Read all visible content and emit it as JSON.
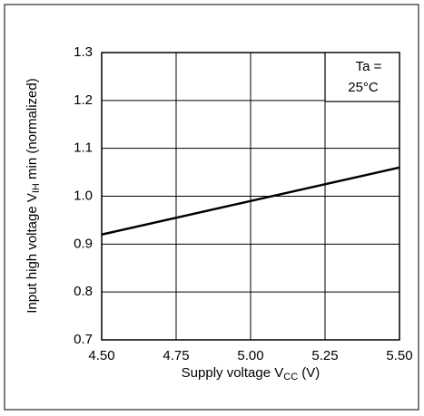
{
  "chart_data": {
    "type": "line",
    "xlabel": [
      "Supply voltage V",
      "CC",
      " (V)"
    ],
    "ylabel": [
      "Input high voltage V",
      "IH",
      " min (normalized)"
    ],
    "annotation": [
      "Ta =",
      "25°C"
    ],
    "x": [
      4.5,
      5.5
    ],
    "series": [
      {
        "color": "#000000",
        "values": [
          0.92,
          1.06
        ]
      }
    ],
    "xlim": [
      4.5,
      5.5
    ],
    "xticks": [
      {
        "value": 4.5,
        "label": "4.50"
      },
      4.75,
      {
        "value": 5,
        "label": "5.00"
      },
      5.25,
      {
        "value": 5.5,
        "label": "5.50"
      }
    ],
    "ylim": [
      0.7,
      1.3
    ],
    "yticks": [
      0.7,
      0.8,
      0.9,
      {
        "value": 1,
        "label": "1.0"
      },
      1.1,
      1.2,
      1.3
    ],
    "grid": true
  }
}
